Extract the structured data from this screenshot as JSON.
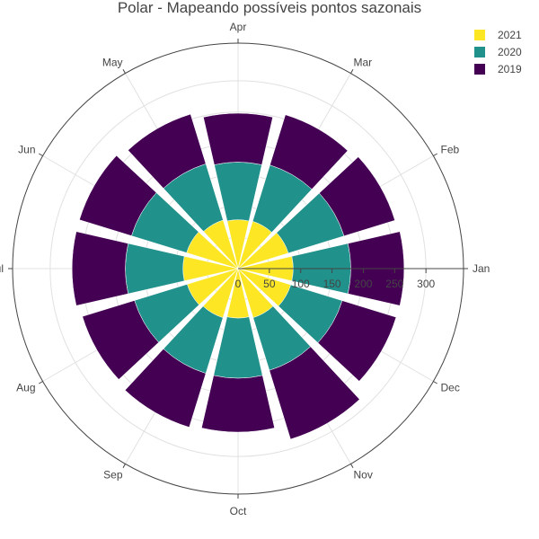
{
  "chart_data": {
    "type": "barpolar",
    "title": "Polar - Mapeando possíveis pontos sazonais",
    "angular_categories": [
      "Jan",
      "Feb",
      "Mar",
      "Apr",
      "May",
      "Jun",
      "Jul",
      "Aug",
      "Sep",
      "Oct",
      "Nov",
      "Dec"
    ],
    "angular_direction": "counterclockwise",
    "angular_rotation_deg": 0,
    "radial_range": [
      0,
      360
    ],
    "radial_ticks": [
      0,
      50,
      100,
      150,
      200,
      250,
      300
    ],
    "radial_tick_labels": [
      "0",
      "50",
      "100",
      "150",
      "200",
      "250",
      "300"
    ],
    "barmode": "stack",
    "legend_placement": "top-right",
    "series": [
      {
        "name": "2021",
        "color": "#fde725",
        "values": [
          88,
          84,
          79,
          78,
          81,
          86,
          88,
          85,
          82,
          79,
          82,
          88
        ]
      },
      {
        "name": "2020",
        "color": "#21918c",
        "values": [
          92,
          93,
          94,
          92,
          94,
          92,
          92,
          88,
          93,
          96,
          88,
          86
        ]
      },
      {
        "name": "2019",
        "color": "#440154",
        "values": [
          85,
          85,
          84,
          78,
          83,
          87,
          85,
          87,
          90,
          86,
          115,
          90
        ]
      }
    ]
  }
}
